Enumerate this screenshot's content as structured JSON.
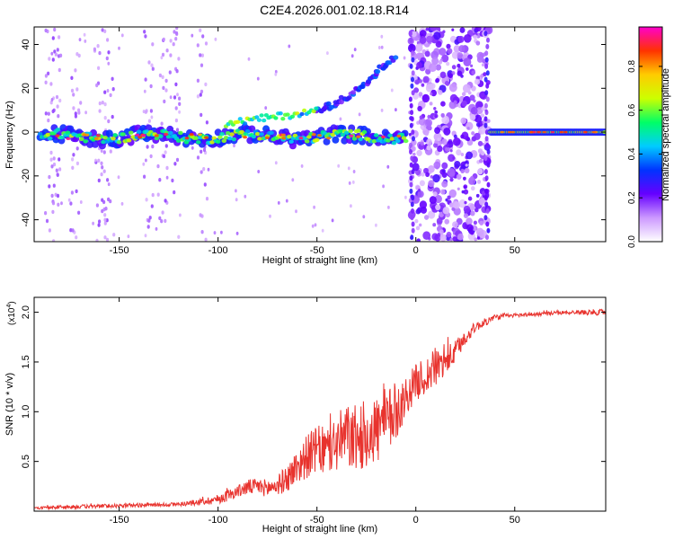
{
  "title": "C2E4.2026.001.02.18.R14",
  "chart_data": [
    {
      "type": "heatmap",
      "xlabel": "Height of straight line (km)",
      "ylabel": "Frequency (Hz)",
      "xlim": [
        -193,
        96
      ],
      "ylim": [
        -50,
        48
      ],
      "xticks": [
        -150,
        -100,
        -50,
        0,
        50
      ],
      "yticks": [
        -40,
        -20,
        0,
        20,
        40
      ],
      "colorbar": {
        "label": "Normalized spectral amplitude",
        "range": [
          0,
          0.98
        ],
        "ticks": [
          0.0,
          0.2,
          0.4,
          0.6,
          0.8
        ],
        "tick_labels": [
          "0.0",
          "0.2",
          "0.4",
          "0.6",
          "0.8"
        ],
        "colormap": [
          "#ffffff",
          "#cc99ff",
          "#6600ff",
          "#0033ff",
          "#00ccff",
          "#00ff66",
          "#ccff00",
          "#ffcc00",
          "#ff3300",
          "#ff00cc"
        ]
      },
      "features": {
        "carrier_band": {
          "x_range": [
            -190,
            -5
          ],
          "center_hz": -2,
          "half_width_hz": 4,
          "amplitude": 0.4
        },
        "upper_branch": {
          "x": [
            -50,
            -40,
            -30,
            -20,
            -10
          ],
          "y": [
            10,
            13,
            19,
            27,
            35
          ]
        },
        "broadband_noise": {
          "x_range": [
            -3,
            37
          ],
          "amplitude": 0.2
        },
        "clean_tone": {
          "x_range": [
            38,
            96
          ],
          "center_hz": 0,
          "amplitude": 0.55
        }
      }
    },
    {
      "type": "line",
      "xlabel": "Height of straight line (km)",
      "ylabel": "SNR (10 * v/v)",
      "scale_label": "(x10",
      "scale_exponent": "4",
      "xlim": [
        -193,
        96
      ],
      "ylim": [
        0,
        2.15
      ],
      "xticks": [
        -150,
        -100,
        -50,
        0,
        50
      ],
      "yticks": [
        0.5,
        1.0,
        1.5,
        2.0
      ],
      "ytick_labels": [
        "0.5",
        "1.0",
        "1.5",
        "2.0"
      ],
      "series": [
        {
          "name": "SNR",
          "color": "#e8332e",
          "x": [
            -193,
            -180,
            -160,
            -140,
            -120,
            -110,
            -100,
            -95,
            -90,
            -85,
            -80,
            -75,
            -70,
            -65,
            -60,
            -55,
            -50,
            -45,
            -40,
            -35,
            -30,
            -25,
            -20,
            -15,
            -10,
            -5,
            0,
            5,
            10,
            15,
            20,
            25,
            30,
            40,
            50,
            60,
            70,
            80,
            90,
            96
          ],
          "y": [
            0.03,
            0.04,
            0.05,
            0.06,
            0.07,
            0.09,
            0.12,
            0.16,
            0.2,
            0.24,
            0.25,
            0.23,
            0.26,
            0.33,
            0.45,
            0.55,
            0.62,
            0.6,
            0.68,
            0.75,
            0.72,
            0.78,
            0.82,
            0.88,
            1.0,
            1.15,
            1.3,
            1.35,
            1.45,
            1.5,
            1.6,
            1.75,
            1.85,
            1.95,
            1.97,
            1.98,
            1.99,
            2.0,
            2.0,
            2.0
          ],
          "noise": [
            0.01,
            0.02,
            0.02,
            0.02,
            0.02,
            0.03,
            0.05,
            0.06,
            0.06,
            0.08,
            0.08,
            0.09,
            0.1,
            0.14,
            0.18,
            0.22,
            0.24,
            0.26,
            0.3,
            0.33,
            0.34,
            0.35,
            0.36,
            0.36,
            0.3,
            0.2,
            0.18,
            0.2,
            0.2,
            0.15,
            0.12,
            0.08,
            0.05,
            0.03,
            0.02,
            0.02,
            0.02,
            0.02,
            0.03,
            0.03
          ]
        }
      ]
    }
  ]
}
